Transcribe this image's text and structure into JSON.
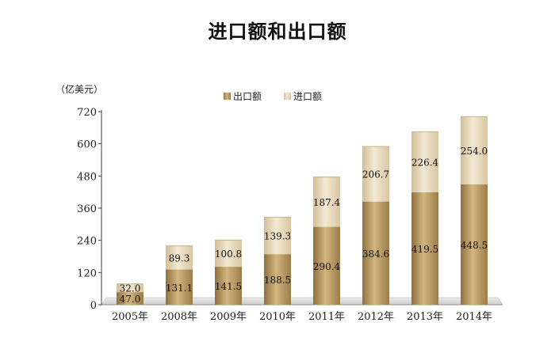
{
  "chart_data": {
    "type": "bar",
    "stacked": true,
    "title": "进口额和出口额",
    "unit_label": "（亿美元）",
    "categories": [
      "2005年",
      "2008年",
      "2009年",
      "2010年",
      "2011年",
      "2012年",
      "2013年",
      "2014年"
    ],
    "series": [
      {
        "name": "出口额",
        "values": [
          47.0,
          131.1,
          141.5,
          188.5,
          290.4,
          384.6,
          419.5,
          448.5
        ],
        "labels": [
          "47.0",
          "131.1",
          "141.5",
          "188.5",
          "290.4",
          "384.6",
          "419.5",
          "448.5"
        ]
      },
      {
        "name": "进口额",
        "values": [
          32.0,
          89.3,
          100.8,
          139.3,
          187.4,
          206.7,
          226.4,
          254.0
        ],
        "labels": [
          "32.0",
          "89.3",
          "100.8",
          "139.3",
          "187.4",
          "206.7",
          "226.4",
          "254.0"
        ]
      }
    ],
    "yticks": [
      "0",
      "120",
      "240",
      "360",
      "480",
      "600",
      "720"
    ],
    "ylim": [
      0,
      720
    ],
    "legend_position": "top",
    "grid": false,
    "colors": {
      "export": "#b8975f",
      "import": "#e6d6b6"
    }
  }
}
